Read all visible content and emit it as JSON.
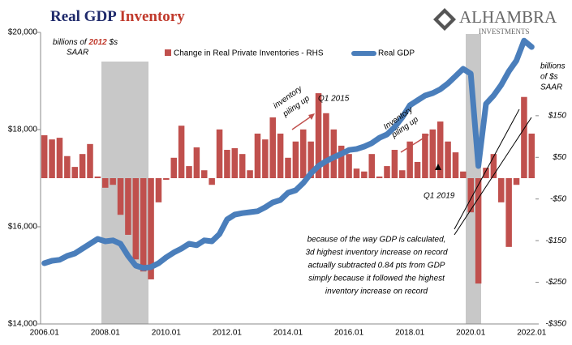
{
  "chart_data": {
    "type": "combo",
    "title": "Real GDP",
    "title_highlight": "Inventory",
    "logo": {
      "name": "ALHAMBRA",
      "subtitle": "INVESTMENTS"
    },
    "y_label": {
      "prefix": "billions of",
      "highlight": "2012",
      "suffix": "$s",
      "line2": "SAAR"
    },
    "y2_label": [
      "billions",
      "of $s",
      "SAAR"
    ],
    "categories": [
      "2006.01",
      null,
      null,
      null,
      null,
      null,
      null,
      null,
      "2008.01",
      null,
      null,
      null,
      null,
      null,
      null,
      null,
      "2010.01",
      null,
      null,
      null,
      null,
      null,
      null,
      null,
      "2012.01",
      null,
      null,
      null,
      null,
      null,
      null,
      null,
      "2014.01",
      null,
      null,
      null,
      null,
      null,
      null,
      null,
      "2016.01",
      null,
      null,
      null,
      null,
      null,
      null,
      null,
      "2018.01",
      null,
      null,
      null,
      null,
      null,
      null,
      null,
      "2020.01",
      null,
      null,
      null,
      null,
      null,
      null,
      null,
      "2022.01"
    ],
    "series": [
      {
        "name": "Change in Real Private Inventories - RHS",
        "type": "bar",
        "axis": "y2",
        "color": "#c0504d",
        "values": [
          103,
          93,
          97,
          53,
          27,
          58,
          82,
          4,
          -23,
          -16,
          -88,
          -136,
          -195,
          -224,
          -243,
          -58,
          -4,
          49,
          126,
          29,
          74,
          19,
          -16,
          117,
          68,
          72,
          58,
          19,
          107,
          93,
          146,
          107,
          49,
          88,
          117,
          88,
          204,
          156,
          117,
          78,
          58,
          23,
          16,
          58,
          4,
          29,
          68,
          19,
          88,
          39,
          107,
          117,
          136,
          88,
          62,
          16,
          -82,
          -253,
          25,
          58,
          -58,
          -165,
          -16,
          195,
          107
        ]
      },
      {
        "name": "Real GDP",
        "type": "line",
        "axis": "y",
        "color": "#4a7ebb",
        "values": [
          15250,
          15300,
          15320,
          15400,
          15450,
          15550,
          15650,
          15750,
          15700,
          15720,
          15650,
          15400,
          15200,
          15150,
          15170,
          15250,
          15370,
          15470,
          15550,
          15650,
          15620,
          15720,
          15700,
          15850,
          16150,
          16250,
          16280,
          16300,
          16320,
          16400,
          16500,
          16550,
          16700,
          16750,
          16900,
          17100,
          17250,
          17350,
          17430,
          17500,
          17580,
          17600,
          17650,
          17720,
          17830,
          17900,
          18050,
          18250,
          18500,
          18600,
          18700,
          18750,
          18830,
          18950,
          19100,
          19250,
          19150,
          17250,
          18530,
          18700,
          18920,
          19200,
          19420,
          19830,
          19700
        ]
      }
    ],
    "ylim": [
      14000,
      20000
    ],
    "yticks": [
      {
        "value": 14000,
        "label": "$14,000"
      },
      {
        "value": 16000,
        "label": "$16,000"
      },
      {
        "value": 18000,
        "label": "$18,000"
      },
      {
        "value": 20000,
        "label": "$20,000"
      }
    ],
    "y2lim": [
      -350,
      350
    ],
    "y2ticks": [
      {
        "value": -350,
        "label": "-$350"
      },
      {
        "value": -250,
        "label": "-$250"
      },
      {
        "value": -150,
        "label": "-$150"
      },
      {
        "value": -50,
        "label": "-$50"
      },
      {
        "value": 50,
        "label": "$50"
      },
      {
        "value": 150,
        "label": "$150"
      }
    ],
    "annotations": {
      "inventory_2015": [
        "inventory",
        "piling up"
      ],
      "q1_2015": "Q1 2015",
      "inventory_2019": [
        "Inventory",
        "piling up"
      ],
      "q1_2019": "Q1 2019",
      "note": [
        "because of the way GDP is calculated,",
        "3d highest inventory increase on record",
        "actually subtracted 0.84 pts from GDP",
        "simply because it followed the highest",
        "inventory increase on record"
      ]
    }
  }
}
